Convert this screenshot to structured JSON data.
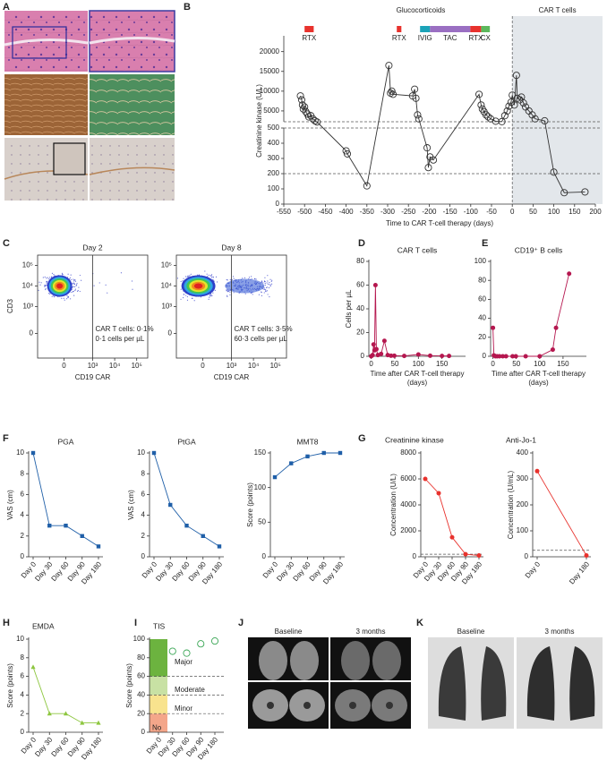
{
  "panel_labels": [
    "A",
    "B",
    "C",
    "D",
    "E",
    "F",
    "G",
    "H",
    "I",
    "J",
    "K"
  ],
  "image_labels": {
    "J": [
      "Baseline",
      "3 months"
    ],
    "K": [
      "Baseline",
      "3 months"
    ]
  },
  "chart_data": [
    {
      "type": "line_broken",
      "xlabel": "Time to CAR T-cell therapy (days)",
      "ylabel": "Creatinine kinase (U/L)",
      "x": [
        -510,
        -507,
        -505,
        -503,
        -500,
        -497,
        -493,
        -490,
        -485,
        -480,
        -475,
        -470,
        -400,
        -397,
        -350,
        -297,
        -293,
        -290,
        -287,
        -240,
        -235,
        -232,
        -228,
        -225,
        -205,
        -202,
        -198,
        -190,
        -80,
        -75,
        -72,
        -68,
        -63,
        -58,
        -52,
        -40,
        -25,
        -18,
        -12,
        -8,
        -3,
        0,
        5,
        10,
        12,
        18,
        22,
        27,
        32,
        40,
        48,
        55,
        78,
        100,
        125,
        175
      ],
      "values": [
        8800,
        7800,
        6500,
        5500,
        6000,
        4800,
        4200,
        3500,
        3800,
        3000,
        2500,
        2200,
        350,
        330,
        120,
        16500,
        9500,
        10000,
        9200,
        8800,
        10500,
        8200,
        4000,
        3000,
        370,
        240,
        310,
        290,
        9200,
        6500,
        5500,
        4800,
        4000,
        3500,
        3000,
        2400,
        2300,
        3800,
        5000,
        6200,
        7200,
        9000,
        6500,
        14000,
        8200,
        7800,
        8500,
        7000,
        6000,
        5000,
        4000,
        3000,
        2500,
        210,
        75,
        80
      ],
      "color": "#333333",
      "marker": "open-circle",
      "xlim": [
        -550,
        200
      ],
      "xticks": [
        -550,
        -500,
        -450,
        -400,
        -350,
        -300,
        -250,
        -200,
        -150,
        -100,
        -50,
        0,
        50,
        100,
        150,
        200
      ],
      "ylim_lower": [
        0,
        500
      ],
      "ylim_upper": [
        0,
        24000
      ],
      "yticks": [
        0,
        100,
        200,
        300,
        400,
        500,
        5000,
        10000,
        15000,
        20000
      ],
      "reference_lines": [
        200
      ],
      "shaded_region": {
        "label": "CAR T cells",
        "from": 0,
        "to": 200
      },
      "annotations": [
        "Glucocorticoids"
      ],
      "treatments": [
        {
          "label": "RTX",
          "start": -500,
          "end": -478,
          "color": "#e8322d"
        },
        {
          "label": "RTX",
          "start": -278,
          "end": -267,
          "color": "#e8322d"
        },
        {
          "label": "IVIG",
          "start": -222,
          "end": -198,
          "color": "#1ba3b8"
        },
        {
          "label": "TAC",
          "start": -198,
          "end": -101,
          "color": "#9a6fc2"
        },
        {
          "label": "RTX",
          "start": -101,
          "end": -75,
          "color": "#e8322d"
        },
        {
          "label": "CX",
          "start": -75,
          "end": -54,
          "color": "#5cb85c"
        }
      ]
    },
    {
      "type": "flow",
      "xlabel": "CD19 CAR",
      "ylabel": "CD3",
      "gate": 1000,
      "xticks": [
        0,
        {
          "value": 1000,
          "label": "10³"
        },
        {
          "value": 10000,
          "label": "10⁴"
        },
        {
          "value": 100000,
          "label": "10⁵"
        }
      ],
      "yticks": [
        0,
        {
          "value": 1000,
          "label": "10³"
        },
        {
          "value": 10000,
          "label": "10⁴"
        },
        {
          "value": 100000,
          "label": "10⁵"
        }
      ],
      "plots": [
        {
          "title": "Day 2",
          "annotations": [
            "CAR T cells: 0·1%",
            "0·1 cells per µL"
          ]
        },
        {
          "title": "Day 8",
          "annotations": [
            "CAR T cells: 3·5%",
            "60·3 cells per µL"
          ]
        }
      ]
    },
    {
      "type": "line",
      "title": "CAR T cells",
      "xlabel": "Time after CAR T-cell therapy (days)",
      "ylabel": "Cells per µL",
      "color": "#b5174f",
      "marker": "circle",
      "x": [
        0,
        3,
        5,
        7,
        9,
        11,
        14,
        21,
        28,
        35,
        42,
        49,
        70,
        100,
        125,
        150,
        165
      ],
      "values": [
        0,
        1,
        10,
        5,
        60,
        6,
        1,
        2,
        13,
        1,
        0.5,
        0.5,
        0.3,
        1.5,
        0.5,
        0.3,
        0.3
      ],
      "xlim": [
        -5,
        200
      ],
      "xticks": [
        0,
        50,
        100,
        150
      ],
      "ylim": [
        0,
        80
      ],
      "yticks": [
        0,
        20,
        40,
        60,
        80
      ]
    },
    {
      "type": "line",
      "title": "CD19⁺ B cells",
      "xlabel": "Time after CAR T-cell therapy (days)",
      "color": "#b5174f",
      "marker": "circle",
      "x": [
        0,
        2,
        5,
        9,
        14,
        21,
        28,
        42,
        49,
        70,
        100,
        128,
        135,
        163
      ],
      "values": [
        30,
        1,
        0,
        0,
        0,
        0,
        0,
        0,
        0,
        0,
        0,
        7,
        30,
        87
      ],
      "xlim": [
        -5,
        200
      ],
      "xticks": [
        0,
        50,
        100,
        150
      ],
      "ylim": [
        0,
        100
      ],
      "yticks": [
        0,
        20,
        40,
        60,
        80,
        100
      ]
    },
    {
      "type": "line",
      "title": "PGA",
      "ylabel": "VAS (cm)",
      "color": "#1f5fa8",
      "marker": "square",
      "categories": [
        "Day 0",
        "Day 30",
        "Day 60",
        "Day 90",
        "Day 180"
      ],
      "values": [
        10,
        3,
        3,
        2,
        1
      ],
      "ylim": [
        0,
        10
      ],
      "yticks": [
        0,
        2,
        4,
        6,
        8,
        10
      ]
    },
    {
      "type": "line",
      "title": "PtGA",
      "ylabel": "VAS (cm)",
      "color": "#1f5fa8",
      "marker": "square",
      "categories": [
        "Day 0",
        "Day 30",
        "Day 60",
        "Day 90",
        "Day 180"
      ],
      "values": [
        10,
        5,
        3,
        2,
        1
      ],
      "ylim": [
        0,
        10
      ],
      "yticks": [
        0,
        2,
        4,
        6,
        8,
        10
      ]
    },
    {
      "type": "line",
      "title": "MMT8",
      "ylabel": "Score (points)",
      "color": "#1f5fa8",
      "marker": "square",
      "categories": [
        "Day 0",
        "Day 30",
        "Day 60",
        "Day 90",
        "Day 180"
      ],
      "values": [
        115,
        135,
        145,
        150,
        150
      ],
      "ylim": [
        0,
        150
      ],
      "yticks": [
        0,
        50,
        100,
        150
      ]
    },
    {
      "type": "line",
      "title": "Creatinine kinase",
      "ylabel": "Concentration (U/L)",
      "color": "#e8322d",
      "marker": "circle",
      "categories": [
        "Day 0",
        "Day 30",
        "Day 60",
        "Day 90",
        "Day 180"
      ],
      "values": [
        6000,
        4900,
        1500,
        200,
        100
      ],
      "ylim": [
        0,
        8000
      ],
      "yticks": [
        0,
        2000,
        4000,
        6000,
        8000
      ],
      "reference_lines": [
        200
      ]
    },
    {
      "type": "line",
      "title": "Anti-Jo-1",
      "ylabel": "Concentration (U/mL)",
      "color": "#e8322d",
      "marker": "circle",
      "categories": [
        "Day 0",
        "Day 180"
      ],
      "values": [
        330,
        5
      ],
      "ylim": [
        0,
        400
      ],
      "yticks": [
        0,
        100,
        200,
        300,
        400
      ],
      "reference_lines": [
        25
      ]
    },
    {
      "type": "line",
      "title": "EMDA",
      "ylabel": "Score (points)",
      "color": "#8dc63f",
      "marker": "triangle",
      "categories": [
        "Day 0",
        "Day 30",
        "Day 60",
        "Day 90",
        "Day 180"
      ],
      "values": [
        7,
        2,
        2,
        1,
        1
      ],
      "ylim": [
        0,
        10
      ],
      "yticks": [
        0,
        2,
        4,
        6,
        8,
        10
      ]
    },
    {
      "type": "line",
      "title": "TIS",
      "ylabel": "Score (points)",
      "color": "#3aa655",
      "marker": "open-circle",
      "connect": false,
      "categories": [
        "Day 0",
        "Day 30",
        "Day 60",
        "Day 90",
        "Day 180"
      ],
      "values": [
        null,
        87,
        85,
        95,
        98
      ],
      "ylim": [
        0,
        100
      ],
      "yticks": [
        0,
        20,
        40,
        60,
        80,
        100
      ],
      "reference_lines": [
        20,
        40,
        60
      ],
      "bands": [
        {
          "label": "No",
          "from": 0,
          "to": 20,
          "color": "#f4a68a"
        },
        {
          "label": "Minor",
          "from": 20,
          "to": 40,
          "color": "#f8e38e"
        },
        {
          "label": "Moderate",
          "from": 40,
          "to": 60,
          "color": "#c8e1a4"
        },
        {
          "label": "Major",
          "from": 60,
          "to": 100,
          "color": "#6cb33f"
        }
      ]
    }
  ]
}
